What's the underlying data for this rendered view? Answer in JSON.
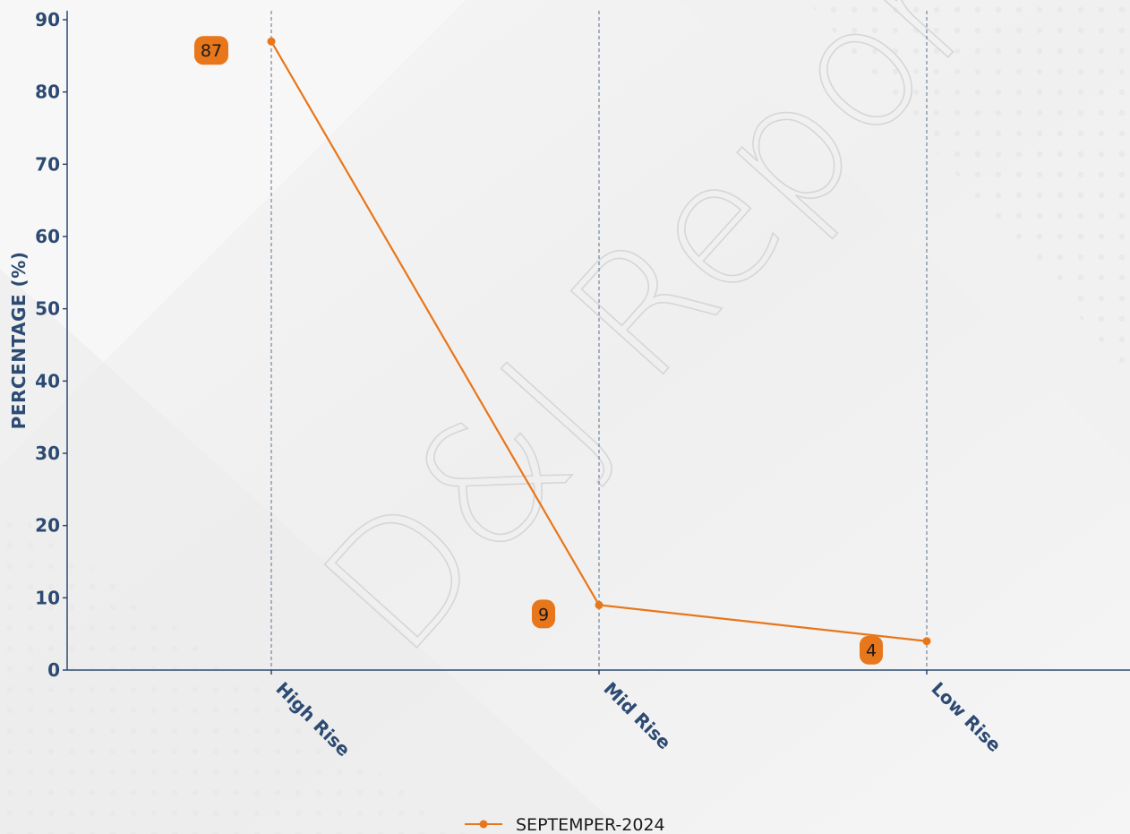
{
  "chart_data": {
    "type": "line",
    "categories": [
      "High Rise",
      "Mid Rise",
      "Low Rise"
    ],
    "series": [
      {
        "name": "SEPTEMPER-2024",
        "values": [
          87,
          9,
          4
        ],
        "color": "#e8761a"
      }
    ],
    "ylabel": "PERCENTAGE (%)",
    "xlabel": "",
    "ylim": [
      0,
      90
    ],
    "yticks": [
      0,
      10,
      20,
      30,
      40,
      50,
      60,
      70,
      80,
      90
    ],
    "grid": "vertical dashed at categories",
    "legend_position": "bottom-center",
    "data_labels": true,
    "watermark": "D&J Reports"
  }
}
